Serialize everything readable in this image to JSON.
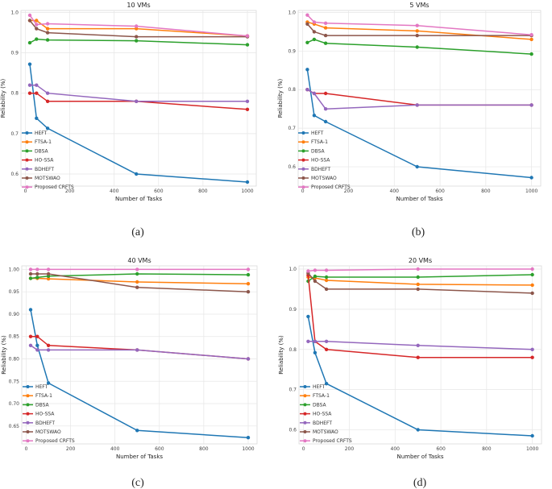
{
  "figure": {
    "series_names": [
      "HEFT",
      "FTSA-1",
      "DBSA",
      "HO-SSA",
      "BDHEFT",
      "MOTSWAO",
      "Proposed CRFTS"
    ],
    "series_colors": [
      "#1f77b4",
      "#ff7f0e",
      "#2ca02c",
      "#d62728",
      "#9467bd",
      "#8c564b",
      "#e377c2"
    ]
  },
  "chart_data": [
    {
      "type": "line",
      "panel_caption": "(a)",
      "title": "10 VMs",
      "xlabel": "Number of Tasks",
      "ylabel": "Reliability (%)",
      "xlim": [
        -20,
        1040
      ],
      "ylim": [
        0.57,
        1.005
      ],
      "x_ticks": [
        0,
        200,
        400,
        600,
        800,
        1000
      ],
      "y_ticks": [
        0.6,
        0.7,
        0.8,
        0.9,
        1.0
      ],
      "y_tick_labels": [
        "0.6",
        "0.7",
        "0.8",
        "0.9",
        "1.0"
      ],
      "x": [
        20,
        50,
        100,
        500,
        1000
      ],
      "series": [
        {
          "name": "HEFT",
          "values": [
            0.872,
            0.738,
            0.713,
            0.6,
            0.58
          ]
        },
        {
          "name": "FTSA-1",
          "values": [
            0.98,
            0.98,
            0.96,
            0.96,
            0.942
          ]
        },
        {
          "name": "DBSA",
          "values": [
            0.925,
            0.934,
            0.932,
            0.93,
            0.92
          ]
        },
        {
          "name": "HO-SSA",
          "values": [
            0.8,
            0.8,
            0.78,
            0.78,
            0.76
          ]
        },
        {
          "name": "BDHEFT",
          "values": [
            0.82,
            0.82,
            0.8,
            0.78,
            0.78
          ]
        },
        {
          "name": "MOTSWAO",
          "values": [
            0.98,
            0.96,
            0.95,
            0.94,
            0.94
          ]
        },
        {
          "name": "Proposed CRFTS",
          "values": [
            0.993,
            0.97,
            0.972,
            0.966,
            0.942
          ]
        }
      ]
    },
    {
      "type": "line",
      "panel_caption": "(b)",
      "title": "5 VMs",
      "xlabel": "Number of Tasks",
      "ylabel": "Reliability (%)",
      "xlim": [
        -20,
        1040
      ],
      "ylim": [
        0.55,
        1.005
      ],
      "x_ticks": [
        0,
        200,
        400,
        600,
        800,
        1000
      ],
      "y_ticks": [
        0.6,
        0.7,
        0.8,
        0.9,
        1.0
      ],
      "y_tick_labels": [
        "0.6",
        "0.7",
        "0.8",
        "0.9",
        "1.0"
      ],
      "x": [
        20,
        50,
        100,
        500,
        1000
      ],
      "series": [
        {
          "name": "HEFT",
          "values": [
            0.852,
            0.733,
            0.717,
            0.6,
            0.572
          ]
        },
        {
          "name": "FTSA-1",
          "values": [
            0.975,
            0.97,
            0.96,
            0.952,
            0.93
          ]
        },
        {
          "name": "DBSA",
          "values": [
            0.922,
            0.93,
            0.92,
            0.91,
            0.892
          ]
        },
        {
          "name": "HO-SSA",
          "values": [
            0.8,
            0.79,
            0.79,
            0.76,
            0.76
          ]
        },
        {
          "name": "BDHEFT",
          "values": [
            0.8,
            0.79,
            0.75,
            0.76,
            0.76
          ]
        },
        {
          "name": "MOTSWAO",
          "values": [
            0.97,
            0.95,
            0.94,
            0.94,
            0.94
          ]
        },
        {
          "name": "Proposed CRFTS",
          "values": [
            0.993,
            0.975,
            0.972,
            0.966,
            0.942
          ]
        }
      ]
    },
    {
      "type": "line",
      "panel_caption": "(c)",
      "title": "40 VMs",
      "xlabel": "Number of Tasks",
      "ylabel": "Reliability (%)",
      "xlim": [
        -20,
        1040
      ],
      "ylim": [
        0.61,
        1.008
      ],
      "x_ticks": [
        0,
        200,
        400,
        600,
        800,
        1000
      ],
      "y_ticks": [
        0.65,
        0.7,
        0.75,
        0.8,
        0.85,
        0.9,
        0.95,
        1.0
      ],
      "y_tick_labels": [
        "0.65",
        "0.70",
        "0.75",
        "0.80",
        "0.85",
        "0.90",
        "0.95",
        "1.00"
      ],
      "x": [
        20,
        50,
        100,
        500,
        1000
      ],
      "series": [
        {
          "name": "HEFT",
          "values": [
            0.91,
            0.83,
            0.746,
            0.64,
            0.624
          ]
        },
        {
          "name": "FTSA-1",
          "values": [
            0.98,
            0.98,
            0.979,
            0.972,
            0.968
          ]
        },
        {
          "name": "DBSA",
          "values": [
            0.98,
            0.982,
            0.985,
            0.99,
            0.988
          ]
        },
        {
          "name": "HO-SSA",
          "values": [
            0.85,
            0.85,
            0.83,
            0.82,
            0.8
          ]
        },
        {
          "name": "BDHEFT",
          "values": [
            0.83,
            0.82,
            0.82,
            0.82,
            0.8
          ]
        },
        {
          "name": "MOTSWAO",
          "values": [
            0.99,
            0.99,
            0.99,
            0.96,
            0.95
          ]
        },
        {
          "name": "Proposed CRFTS",
          "values": [
            1.0,
            1.0,
            1.0,
            1.0,
            1.0
          ]
        }
      ]
    },
    {
      "type": "line",
      "panel_caption": "(d)",
      "title": "20 VMs",
      "xlabel": "Number of Tasks",
      "ylabel": "Reliability (%)",
      "xlim": [
        -20,
        1040
      ],
      "ylim": [
        0.565,
        1.008
      ],
      "x_ticks": [
        0,
        200,
        400,
        600,
        800,
        1000
      ],
      "y_ticks": [
        0.6,
        0.7,
        0.8,
        0.9,
        1.0
      ],
      "y_tick_labels": [
        "0.6",
        "0.7",
        "0.8",
        "0.9",
        "1.0"
      ],
      "x": [
        20,
        50,
        100,
        500,
        1000
      ],
      "series": [
        {
          "name": "HEFT",
          "values": [
            0.882,
            0.792,
            0.715,
            0.6,
            0.585
          ]
        },
        {
          "name": "FTSA-1",
          "values": [
            0.98,
            0.978,
            0.972,
            0.962,
            0.96
          ]
        },
        {
          "name": "DBSA",
          "values": [
            0.97,
            0.982,
            0.98,
            0.98,
            0.986
          ]
        },
        {
          "name": "HO-SSA",
          "values": [
            0.985,
            0.82,
            0.8,
            0.78,
            0.78
          ]
        },
        {
          "name": "BDHEFT",
          "values": [
            0.82,
            0.82,
            0.82,
            0.81,
            0.8
          ]
        },
        {
          "name": "MOTSWAO",
          "values": [
            0.99,
            0.97,
            0.95,
            0.95,
            0.94
          ]
        },
        {
          "name": "Proposed CRFTS",
          "values": [
            0.995,
            0.997,
            0.997,
            1.0,
            1.0
          ]
        }
      ]
    }
  ]
}
